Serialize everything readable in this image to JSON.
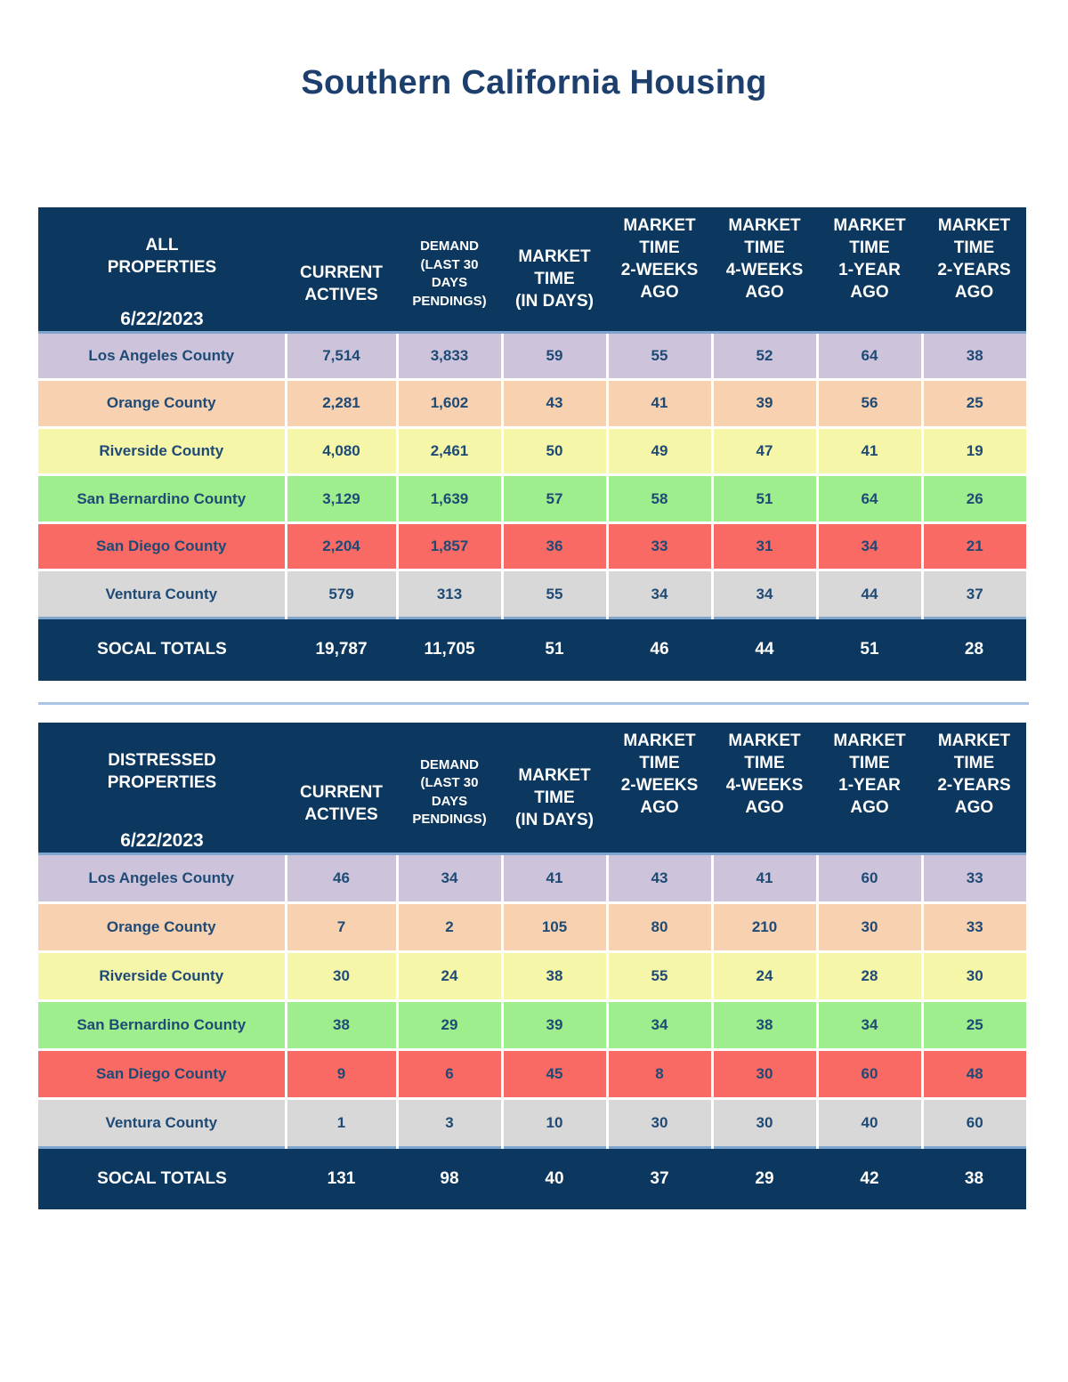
{
  "page": {
    "title": "Southern California Housing"
  },
  "colors": {
    "header": "#0c375e",
    "title": "#1d3f6e",
    "text": "#1e4a75",
    "los_angeles": "#cdc4dc",
    "orange": "#f8d1b0",
    "riverside": "#f5f6a8",
    "san_bernardino": "#9eee8d",
    "san_diego": "#f96a65",
    "ventura": "#d8d8d8"
  },
  "columns": {
    "current_actives": [
      "CURRENT",
      "ACTIVES"
    ],
    "demand": [
      "DEMAND",
      "(LAST 30",
      "DAYS",
      "PENDINGS)"
    ],
    "market_time": [
      "MARKET",
      "TIME",
      "(IN DAYS)"
    ],
    "two_weeks": [
      "MARKET",
      "TIME",
      "2-WEEKS",
      "AGO"
    ],
    "four_weeks": [
      "MARKET",
      "TIME",
      "4-WEEKS",
      "AGO"
    ],
    "one_year": [
      "MARKET",
      "TIME",
      "1-YEAR",
      "AGO"
    ],
    "two_years": [
      "MARKET",
      "TIME",
      "2-YEARS",
      "AGO"
    ]
  },
  "all_properties": {
    "label": [
      "ALL",
      "PROPERTIES"
    ],
    "date": "6/22/2023",
    "rows": [
      {
        "county": "Los Angeles County",
        "color": "#cdc4dc",
        "values": [
          "7,514",
          "3,833",
          "59",
          "55",
          "52",
          "64",
          "38"
        ]
      },
      {
        "county": "Orange County",
        "color": "#f8d1b0",
        "values": [
          "2,281",
          "1,602",
          "43",
          "41",
          "39",
          "56",
          "25"
        ]
      },
      {
        "county": "Riverside County",
        "color": "#f5f6a8",
        "values": [
          "4,080",
          "2,461",
          "50",
          "49",
          "47",
          "41",
          "19"
        ]
      },
      {
        "county": "San Bernardino County",
        "color": "#9eee8d",
        "values": [
          "3,129",
          "1,639",
          "57",
          "58",
          "51",
          "64",
          "26"
        ]
      },
      {
        "county": "San Diego County",
        "color": "#f96a65",
        "values": [
          "2,204",
          "1,857",
          "36",
          "33",
          "31",
          "34",
          "21"
        ]
      },
      {
        "county": "Ventura County",
        "color": "#d8d8d8",
        "values": [
          "579",
          "313",
          "55",
          "34",
          "34",
          "44",
          "37"
        ]
      }
    ],
    "totals": {
      "label": "SOCAL TOTALS",
      "values": [
        "19,787",
        "11,705",
        "51",
        "46",
        "44",
        "51",
        "28"
      ]
    }
  },
  "distressed_properties": {
    "label": [
      "DISTRESSED",
      "PROPERTIES"
    ],
    "date": "6/22/2023",
    "rows": [
      {
        "county": "Los Angeles County",
        "color": "#cdc4dc",
        "values": [
          "46",
          "34",
          "41",
          "43",
          "41",
          "60",
          "33"
        ]
      },
      {
        "county": "Orange County",
        "color": "#f8d1b0",
        "values": [
          "7",
          "2",
          "105",
          "80",
          "210",
          "30",
          "33"
        ]
      },
      {
        "county": "Riverside County",
        "color": "#f5f6a8",
        "values": [
          "30",
          "24",
          "38",
          "55",
          "24",
          "28",
          "30"
        ]
      },
      {
        "county": "San Bernardino County",
        "color": "#9eee8d",
        "values": [
          "38",
          "29",
          "39",
          "34",
          "38",
          "34",
          "25"
        ]
      },
      {
        "county": "San Diego County",
        "color": "#f96a65",
        "values": [
          "9",
          "6",
          "45",
          "8",
          "30",
          "60",
          "48"
        ]
      },
      {
        "county": "Ventura County",
        "color": "#d8d8d8",
        "values": [
          "1",
          "3",
          "10",
          "30",
          "30",
          "40",
          "60"
        ]
      }
    ],
    "totals": {
      "label": "SOCAL TOTALS",
      "values": [
        "131",
        "98",
        "40",
        "37",
        "29",
        "42",
        "38"
      ]
    }
  }
}
